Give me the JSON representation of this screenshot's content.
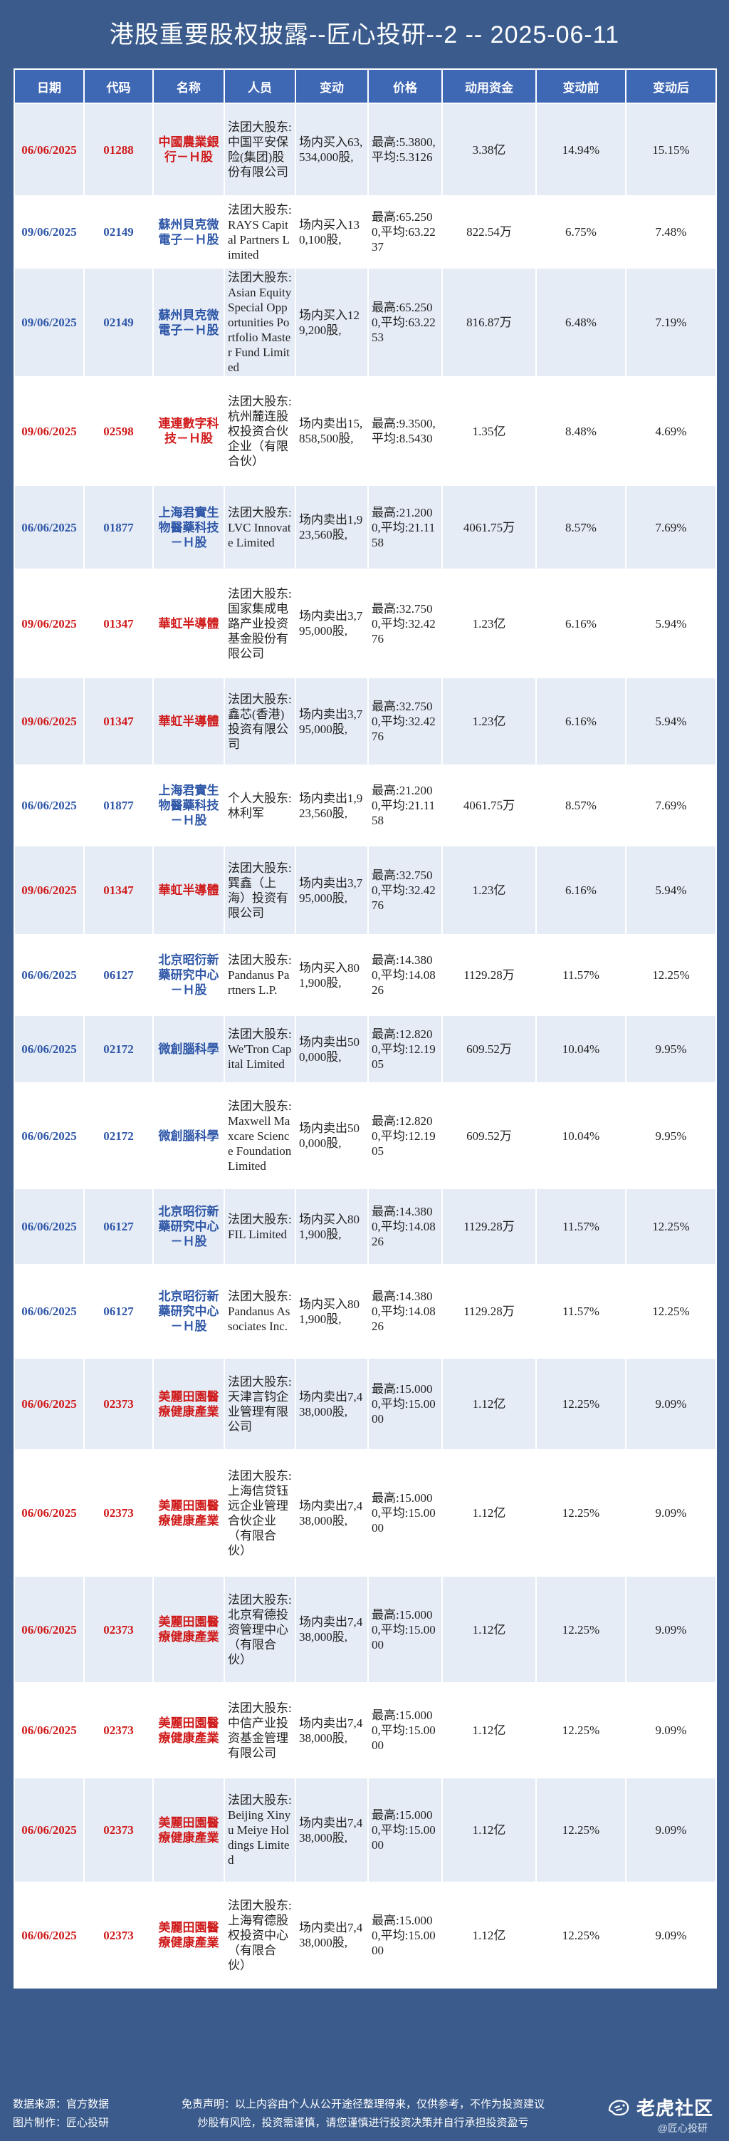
{
  "title": "港股重要股权披露--匠心投研--2 -- 2025-06-11",
  "colors": {
    "red": "#d01b1b",
    "blue": "#2f57a8",
    "header": "#3e67b4",
    "background": "#3a5b8c"
  },
  "headers": [
    "日期",
    "代码",
    "名称",
    "人员",
    "变动",
    "价格",
    "动用资金",
    "变动前",
    "变动后"
  ],
  "rows": [
    {
      "color": "red",
      "date": "06/06/2025",
      "code": "01288",
      "name": "中國農業銀行－Ｈ股",
      "person": "法团大股东:中国平安保险(集团)股份有限公司",
      "action": "场内买入63,534,000股,",
      "price": "最高:5.3800,平均:5.3126",
      "funds": "3.38亿",
      "before": "14.94%",
      "after": "15.15%"
    },
    {
      "color": "blue",
      "date": "09/06/2025",
      "code": "02149",
      "name": "蘇州貝克微電子－Ｈ股",
      "person": "法团大股东:RAYS Capital Partners Limited",
      "action": "场内买入130,100股,",
      "price": "最高:65.2500,平均:63.2237",
      "funds": "822.54万",
      "before": "6.75%",
      "after": "7.48%"
    },
    {
      "color": "blue",
      "date": "09/06/2025",
      "code": "02149",
      "name": "蘇州貝克微電子－Ｈ股",
      "person": "法团大股东:Asian Equity Special Opportunities Portfolio Master Fund Limited",
      "action": "场内买入129,200股,",
      "price": "最高:65.2500,平均:63.2253",
      "funds": "816.87万",
      "before": "6.48%",
      "after": "7.19%"
    },
    {
      "color": "red",
      "date": "09/06/2025",
      "code": "02598",
      "name": "連連數字科技－Ｈ股",
      "person": "法团大股东:杭州麓连股权投资合伙企业（有限合伙）",
      "action": "场内卖出15,858,500股,",
      "price": "最高:9.3500,平均:8.5430",
      "funds": "1.35亿",
      "before": "8.48%",
      "after": "4.69%"
    },
    {
      "color": "blue",
      "date": "06/06/2025",
      "code": "01877",
      "name": "上海君實生物醫藥科技－Ｈ股",
      "person": "法团大股东:LVC Innovate Limited",
      "action": "场内卖出1,923,560股,",
      "price": "最高:21.2000,平均:21.1158",
      "funds": "4061.75万",
      "before": "8.57%",
      "after": "7.69%"
    },
    {
      "color": "red",
      "date": "09/06/2025",
      "code": "01347",
      "name": "華虹半導體",
      "person": "法团大股东:国家集成电路产业投资基金股份有限公司",
      "action": "场内卖出3,795,000股,",
      "price": "最高:32.7500,平均:32.4276",
      "funds": "1.23亿",
      "before": "6.16%",
      "after": "5.94%"
    },
    {
      "color": "red",
      "date": "09/06/2025",
      "code": "01347",
      "name": "華虹半導體",
      "person": "法团大股东:鑫芯(香港)投资有限公司",
      "action": "场内卖出3,795,000股,",
      "price": "最高:32.7500,平均:32.4276",
      "funds": "1.23亿",
      "before": "6.16%",
      "after": "5.94%"
    },
    {
      "color": "blue",
      "date": "06/06/2025",
      "code": "01877",
      "name": "上海君實生物醫藥科技－Ｈ股",
      "person": "个人大股东:林利军",
      "action": "场内卖出1,923,560股,",
      "price": "最高:21.2000,平均:21.1158",
      "funds": "4061.75万",
      "before": "8.57%",
      "after": "7.69%"
    },
    {
      "color": "red",
      "date": "09/06/2025",
      "code": "01347",
      "name": "華虹半導體",
      "person": "法团大股东:巽鑫（上海）投资有限公司",
      "action": "场内卖出3,795,000股,",
      "price": "最高:32.7500,平均:32.4276",
      "funds": "1.23亿",
      "before": "6.16%",
      "after": "5.94%"
    },
    {
      "color": "blue",
      "date": "06/06/2025",
      "code": "06127",
      "name": "北京昭衍新藥研究中心－Ｈ股",
      "person": "法团大股东:Pandanus Partners L.P.",
      "action": "场内买入801,900股,",
      "price": "最高:14.3800,平均:14.0826",
      "funds": "1129.28万",
      "before": "11.57%",
      "after": "12.25%"
    },
    {
      "color": "blue",
      "date": "06/06/2025",
      "code": "02172",
      "name": "微創腦科學",
      "person": "法团大股东:We'Tron Capital Limited",
      "action": "场内卖出500,000股,",
      "price": "最高:12.8200,平均:12.1905",
      "funds": "609.52万",
      "before": "10.04%",
      "after": "9.95%"
    },
    {
      "color": "blue",
      "date": "06/06/2025",
      "code": "02172",
      "name": "微創腦科學",
      "person": "法团大股东:Maxwell Maxcare Science Foundation Limited",
      "action": "场内卖出500,000股,",
      "price": "最高:12.8200,平均:12.1905",
      "funds": "609.52万",
      "before": "10.04%",
      "after": "9.95%"
    },
    {
      "color": "blue",
      "date": "06/06/2025",
      "code": "06127",
      "name": "北京昭衍新藥研究中心－Ｈ股",
      "person": "法团大股东:FIL Limited",
      "action": "场内买入801,900股,",
      "price": "最高:14.3800,平均:14.0826",
      "funds": "1129.28万",
      "before": "11.57%",
      "after": "12.25%"
    },
    {
      "color": "blue",
      "date": "06/06/2025",
      "code": "06127",
      "name": "北京昭衍新藥研究中心－Ｈ股",
      "person": "法团大股东:Pandanus Associates Inc.",
      "action": "场内买入801,900股,",
      "price": "最高:14.3800,平均:14.0826",
      "funds": "1129.28万",
      "before": "11.57%",
      "after": "12.25%"
    },
    {
      "color": "red",
      "date": "06/06/2025",
      "code": "02373",
      "name": "美麗田園醫療健康產業",
      "person": "法团大股东:天津言钧企业管理有限公司",
      "action": "场内卖出7,438,000股,",
      "price": "最高:15.0000,平均:15.0000",
      "funds": "1.12亿",
      "before": "12.25%",
      "after": "9.09%"
    },
    {
      "color": "red",
      "date": "06/06/2025",
      "code": "02373",
      "name": "美麗田園醫療健康產業",
      "person": "法团大股东:上海信贷钰远企业管理合伙企业（有限合伙）",
      "action": "场内卖出7,438,000股,",
      "price": "最高:15.0000,平均:15.0000",
      "funds": "1.12亿",
      "before": "12.25%",
      "after": "9.09%"
    },
    {
      "color": "red",
      "date": "06/06/2025",
      "code": "02373",
      "name": "美麗田園醫療健康產業",
      "person": "法团大股东:北京宥德投资管理中心（有限合伙）",
      "action": "场内卖出7,438,000股,",
      "price": "最高:15.0000,平均:15.0000",
      "funds": "1.12亿",
      "before": "12.25%",
      "after": "9.09%"
    },
    {
      "color": "red",
      "date": "06/06/2025",
      "code": "02373",
      "name": "美麗田園醫療健康產業",
      "person": "法团大股东:中信产业投资基金管理有限公司",
      "action": "场内卖出7,438,000股,",
      "price": "最高:15.0000,平均:15.0000",
      "funds": "1.12亿",
      "before": "12.25%",
      "after": "9.09%"
    },
    {
      "color": "red",
      "date": "06/06/2025",
      "code": "02373",
      "name": "美麗田園醫療健康產業",
      "person": "法团大股东:Beijing Xinyu Meiye Holdings Limited",
      "action": "场内卖出7,438,000股,",
      "price": "最高:15.0000,平均:15.0000",
      "funds": "1.12亿",
      "before": "12.25%",
      "after": "9.09%"
    },
    {
      "color": "red",
      "date": "06/06/2025",
      "code": "02373",
      "name": "美麗田園醫療健康產業",
      "person": "法团大股东:上海宥德股权投资中心（有限合伙）",
      "action": "场内卖出7,438,000股,",
      "price": "最高:15.0000,平均:15.0000",
      "funds": "1.12亿",
      "before": "12.25%",
      "after": "9.09%"
    }
  ],
  "footer": {
    "source": "数据来源：官方数据",
    "maker": "图片制作：匠心投研",
    "disclaimer_1": "免责声明：以上内容由个人从公开途径整理得来，仅供参考，不作为投资建议",
    "disclaimer_2": "炒股有风险，投资需谨慎，请您谨慎进行投资决策并自行承担投资盈亏",
    "brand": "老虎社区",
    "brand_sub": "@匠心投研",
    "logo_icon": "tiger-icon"
  }
}
